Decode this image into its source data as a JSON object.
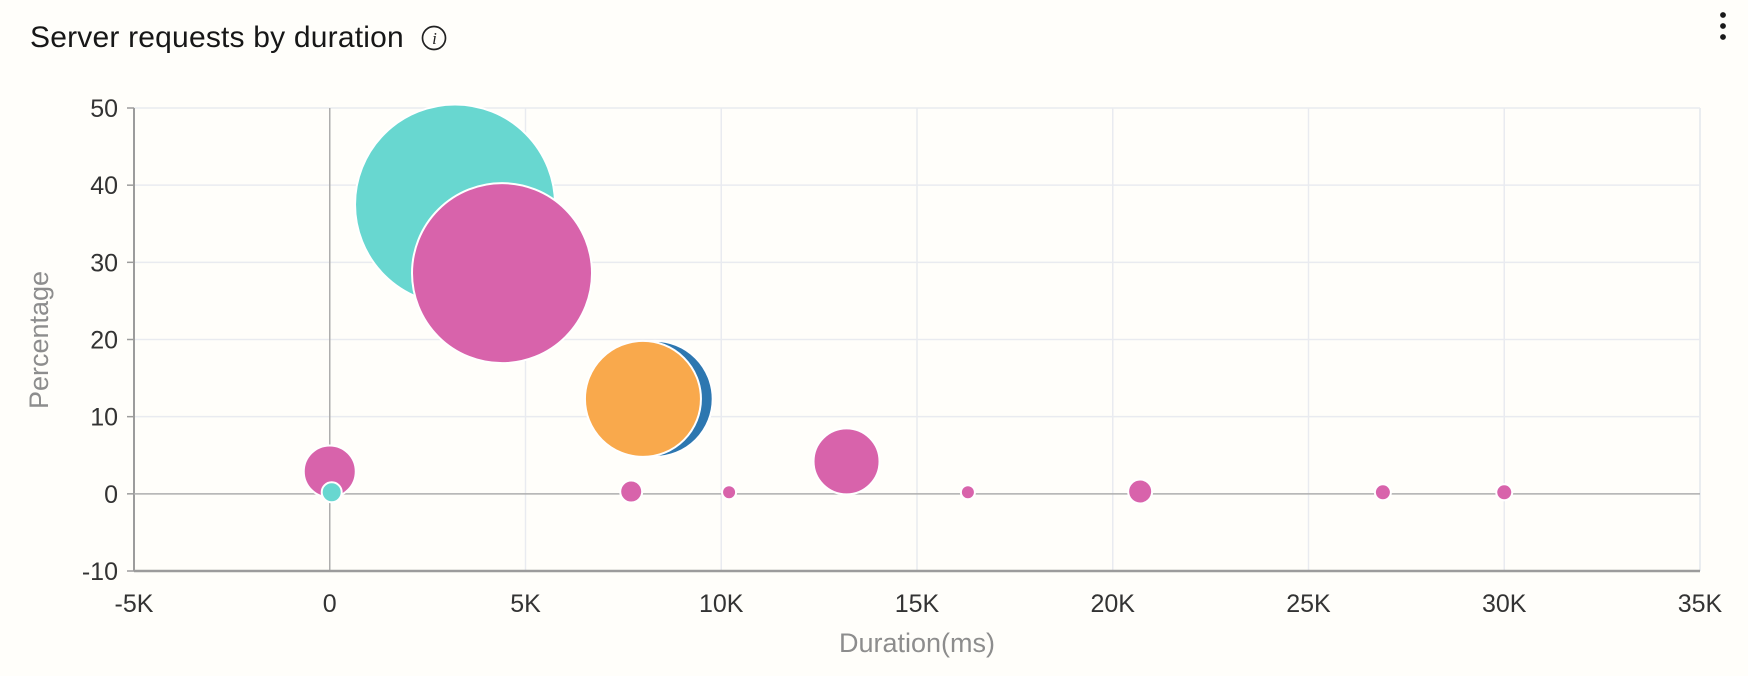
{
  "widget": {
    "title": "Server requests by duration"
  },
  "chart_data": {
    "type": "scatter",
    "subtype": "bubble",
    "title": "Server requests by duration",
    "xlabel": "Duration(ms)",
    "ylabel": "Percentage",
    "xlim": [
      -5000,
      35000
    ],
    "ylim": [
      -10,
      50
    ],
    "grid": true,
    "legend_position": "none",
    "x_ticks": [
      {
        "value": -5000,
        "label": "-5K"
      },
      {
        "value": 0,
        "label": "0"
      },
      {
        "value": 5000,
        "label": "5K"
      },
      {
        "value": 10000,
        "label": "10K"
      },
      {
        "value": 15000,
        "label": "15K"
      },
      {
        "value": 20000,
        "label": "20K"
      },
      {
        "value": 25000,
        "label": "25K"
      },
      {
        "value": 30000,
        "label": "30K"
      },
      {
        "value": 35000,
        "label": "35K"
      }
    ],
    "y_ticks": [
      {
        "value": -10,
        "label": "-10"
      },
      {
        "value": 0,
        "label": "0"
      },
      {
        "value": 10,
        "label": "10"
      },
      {
        "value": 20,
        "label": "20"
      },
      {
        "value": 30,
        "label": "30"
      },
      {
        "value": 40,
        "label": "40"
      },
      {
        "value": 50,
        "label": "50"
      }
    ],
    "palette": {
      "teal": "#68d7d0",
      "pink": "#d863ab",
      "orange": "#f9a94c",
      "blue": "#2d77b0"
    },
    "bubbles": [
      {
        "series": "teal",
        "x": 3200,
        "y": 37.5,
        "r": 100
      },
      {
        "series": "pink",
        "x": 4400,
        "y": 28.6,
        "r": 90
      },
      {
        "series": "blue",
        "x": 8300,
        "y": 12.3,
        "r": 58
      },
      {
        "series": "orange",
        "x": 8000,
        "y": 12.3,
        "r": 58
      },
      {
        "series": "pink",
        "x": 0,
        "y": 2.9,
        "r": 26
      },
      {
        "series": "teal",
        "x": 50,
        "y": 0.2,
        "r": 10
      },
      {
        "series": "pink",
        "x": 7700,
        "y": 0.3,
        "r": 11
      },
      {
        "series": "pink",
        "x": 10200,
        "y": 0.2,
        "r": 7
      },
      {
        "series": "pink",
        "x": 13200,
        "y": 4.2,
        "r": 33
      },
      {
        "series": "pink",
        "x": 16300,
        "y": 0.2,
        "r": 7
      },
      {
        "series": "pink",
        "x": 20700,
        "y": 0.3,
        "r": 12
      },
      {
        "series": "pink",
        "x": 26900,
        "y": 0.2,
        "r": 8
      },
      {
        "series": "pink",
        "x": 30000,
        "y": 0.2,
        "r": 8
      }
    ],
    "colors": {
      "background": "#fffefa",
      "grid_light": "#e9ebf0",
      "zero_line": "#aeaeae",
      "axis_line": "#9c9c9c",
      "right_border": "#e4e7ec",
      "tick_label": "#333333",
      "axis_title": "#8d8d8d",
      "title_text": "#171717",
      "bubble_stroke": "#ffffff"
    }
  }
}
